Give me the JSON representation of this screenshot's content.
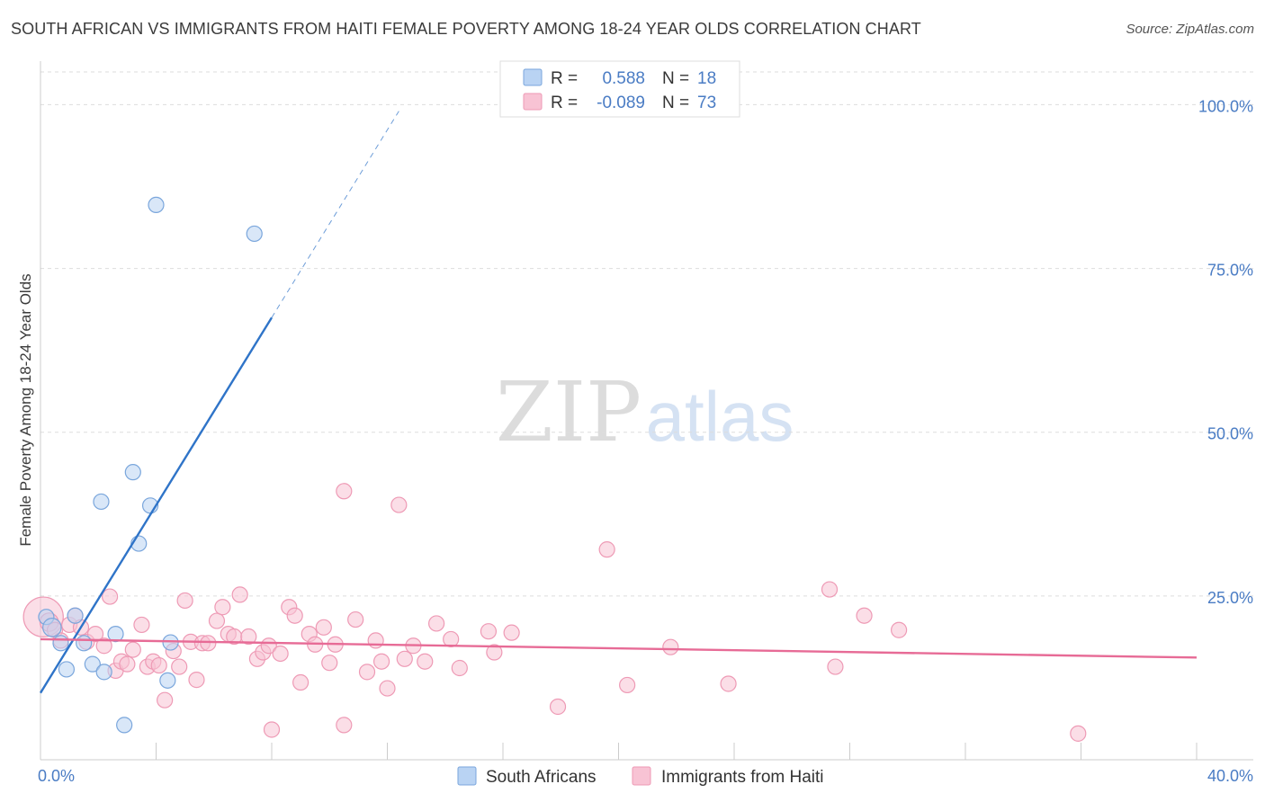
{
  "header": {
    "title": "SOUTH AFRICAN VS IMMIGRANTS FROM HAITI FEMALE POVERTY AMONG 18-24 YEAR OLDS CORRELATION CHART",
    "source": "Source: ZipAtlas.com"
  },
  "watermark": {
    "zip": "ZIP",
    "atlas": "atlas"
  },
  "colors": {
    "blue_fill": "#b9d3f3",
    "blue_stroke": "#7aa6dc",
    "blue_line": "#2f74c8",
    "pink_fill": "#f8c3d4",
    "pink_stroke": "#ee9ab5",
    "pink_line": "#e76b96",
    "tick_label": "#4a7cc4",
    "grid": "#dddddd"
  },
  "chart_data": {
    "type": "scatter",
    "title": "SOUTH AFRICAN VS IMMIGRANTS FROM HAITI FEMALE POVERTY AMONG 18-24 YEAR OLDS CORRELATION CHART",
    "xlabel": "",
    "ylabel": "Female Poverty Among 18-24 Year Olds",
    "xlim": [
      0,
      40
    ],
    "ylim": [
      0,
      105
    ],
    "x_tick_labels": [
      {
        "value": 0,
        "label": "0.0%"
      },
      {
        "value": 40,
        "label": "40.0%"
      }
    ],
    "y_tick_labels": [
      {
        "value": 25,
        "label": "25.0%"
      },
      {
        "value": 50,
        "label": "50.0%"
      },
      {
        "value": 75,
        "label": "75.0%"
      },
      {
        "value": 100,
        "label": "100.0%"
      }
    ],
    "grid": true,
    "legend_placement": "top-center",
    "legend": [
      {
        "series": 0,
        "r_label": "R =",
        "r_value": "0.588",
        "n_label": "N =",
        "n_value": "18"
      },
      {
        "series": 1,
        "r_label": "R =",
        "r_value": "-0.089",
        "n_label": "N =",
        "n_value": "73"
      }
    ],
    "bottom_legend": [
      {
        "series": 0,
        "label": "South Africans"
      },
      {
        "series": 1,
        "label": "Immigrants from Haiti"
      }
    ],
    "series": [
      {
        "name": "South Africans",
        "color": "blue",
        "trend": {
          "x0": 0.0,
          "y0": 10.2,
          "x1": 8.0,
          "y1": 67.5,
          "dash_to_x": 12.4
        },
        "points": [
          [
            0.2,
            21.8,
            1.0
          ],
          [
            0.4,
            20.2,
            1.2
          ],
          [
            0.7,
            17.8,
            1.0
          ],
          [
            0.9,
            13.8,
            1.0
          ],
          [
            1.2,
            22.0,
            1.0
          ],
          [
            1.5,
            17.8,
            1.0
          ],
          [
            1.8,
            14.6,
            1.0
          ],
          [
            2.1,
            39.4,
            1.0
          ],
          [
            2.2,
            13.4,
            1.0
          ],
          [
            2.6,
            19.2,
            1.0
          ],
          [
            2.9,
            5.3,
            1.0
          ],
          [
            3.2,
            43.9,
            1.0
          ],
          [
            3.4,
            33.0,
            1.0
          ],
          [
            3.8,
            38.8,
            1.0
          ],
          [
            4.0,
            84.7,
            1.0
          ],
          [
            4.4,
            12.1,
            1.0
          ],
          [
            4.5,
            17.9,
            1.0
          ],
          [
            7.4,
            80.3,
            1.0
          ]
        ]
      },
      {
        "name": "Immigrants from Haiti",
        "color": "pink",
        "trend": {
          "x0": 0.0,
          "y0": 18.4,
          "x1": 40.0,
          "y1": 15.6
        },
        "points": [
          [
            0.1,
            21.8,
            2.6
          ],
          [
            0.3,
            21.0,
            1.2
          ],
          [
            0.5,
            19.8,
            1.0
          ],
          [
            0.7,
            18.2,
            1.0
          ],
          [
            1.0,
            20.6,
            1.0
          ],
          [
            1.2,
            22.0,
            1.0
          ],
          [
            1.4,
            20.2,
            1.0
          ],
          [
            1.6,
            18.0,
            1.0
          ],
          [
            1.9,
            19.2,
            1.0
          ],
          [
            2.2,
            17.4,
            1.0
          ],
          [
            2.4,
            24.9,
            1.0
          ],
          [
            2.6,
            13.6,
            1.0
          ],
          [
            2.8,
            15.0,
            1.0
          ],
          [
            3.0,
            14.6,
            1.0
          ],
          [
            3.2,
            16.8,
            1.0
          ],
          [
            3.5,
            20.6,
            1.0
          ],
          [
            3.7,
            14.2,
            1.0
          ],
          [
            3.9,
            15.0,
            1.0
          ],
          [
            4.1,
            14.4,
            1.0
          ],
          [
            4.3,
            9.1,
            1.0
          ],
          [
            4.6,
            16.6,
            1.0
          ],
          [
            4.8,
            14.2,
            1.0
          ],
          [
            5.0,
            24.3,
            1.0
          ],
          [
            5.2,
            18.0,
            1.0
          ],
          [
            5.4,
            12.2,
            1.0
          ],
          [
            5.6,
            17.8,
            1.0
          ],
          [
            5.8,
            17.8,
            1.0
          ],
          [
            6.1,
            21.2,
            1.0
          ],
          [
            6.3,
            23.3,
            1.0
          ],
          [
            6.5,
            19.2,
            1.0
          ],
          [
            6.7,
            18.8,
            1.0
          ],
          [
            6.9,
            25.2,
            1.0
          ],
          [
            7.2,
            18.8,
            1.0
          ],
          [
            7.5,
            15.4,
            1.0
          ],
          [
            7.7,
            16.4,
            1.0
          ],
          [
            7.9,
            17.4,
            1.0
          ],
          [
            8.0,
            4.6,
            1.0
          ],
          [
            8.3,
            16.2,
            1.0
          ],
          [
            8.6,
            23.3,
            1.0
          ],
          [
            8.8,
            22.0,
            1.0
          ],
          [
            9.0,
            11.8,
            1.0
          ],
          [
            9.3,
            19.2,
            1.0
          ],
          [
            9.5,
            17.6,
            1.0
          ],
          [
            9.8,
            20.2,
            1.0
          ],
          [
            10.0,
            14.8,
            1.0
          ],
          [
            10.2,
            17.6,
            1.0
          ],
          [
            10.5,
            5.3,
            1.0
          ],
          [
            10.5,
            41.0,
            1.0
          ],
          [
            10.9,
            21.4,
            1.0
          ],
          [
            11.3,
            13.4,
            1.0
          ],
          [
            11.6,
            18.2,
            1.0
          ],
          [
            11.8,
            15.0,
            1.0
          ],
          [
            12.0,
            10.9,
            1.0
          ],
          [
            12.4,
            38.9,
            1.0
          ],
          [
            12.6,
            15.4,
            1.0
          ],
          [
            12.9,
            17.4,
            1.0
          ],
          [
            13.3,
            15.0,
            1.0
          ],
          [
            13.7,
            20.8,
            1.0
          ],
          [
            14.2,
            18.4,
            1.0
          ],
          [
            14.5,
            14.0,
            1.0
          ],
          [
            15.5,
            19.6,
            1.0
          ],
          [
            15.7,
            16.4,
            1.0
          ],
          [
            16.3,
            19.4,
            1.0
          ],
          [
            17.9,
            8.1,
            1.0
          ],
          [
            19.6,
            32.1,
            1.0
          ],
          [
            20.3,
            11.4,
            1.0
          ],
          [
            21.8,
            17.2,
            1.0
          ],
          [
            23.8,
            11.6,
            1.0
          ],
          [
            27.3,
            26.0,
            1.0
          ],
          [
            27.5,
            14.2,
            1.0
          ],
          [
            28.5,
            22.0,
            1.0
          ],
          [
            29.7,
            19.8,
            1.0
          ],
          [
            35.9,
            4.0,
            1.0
          ]
        ]
      }
    ]
  }
}
